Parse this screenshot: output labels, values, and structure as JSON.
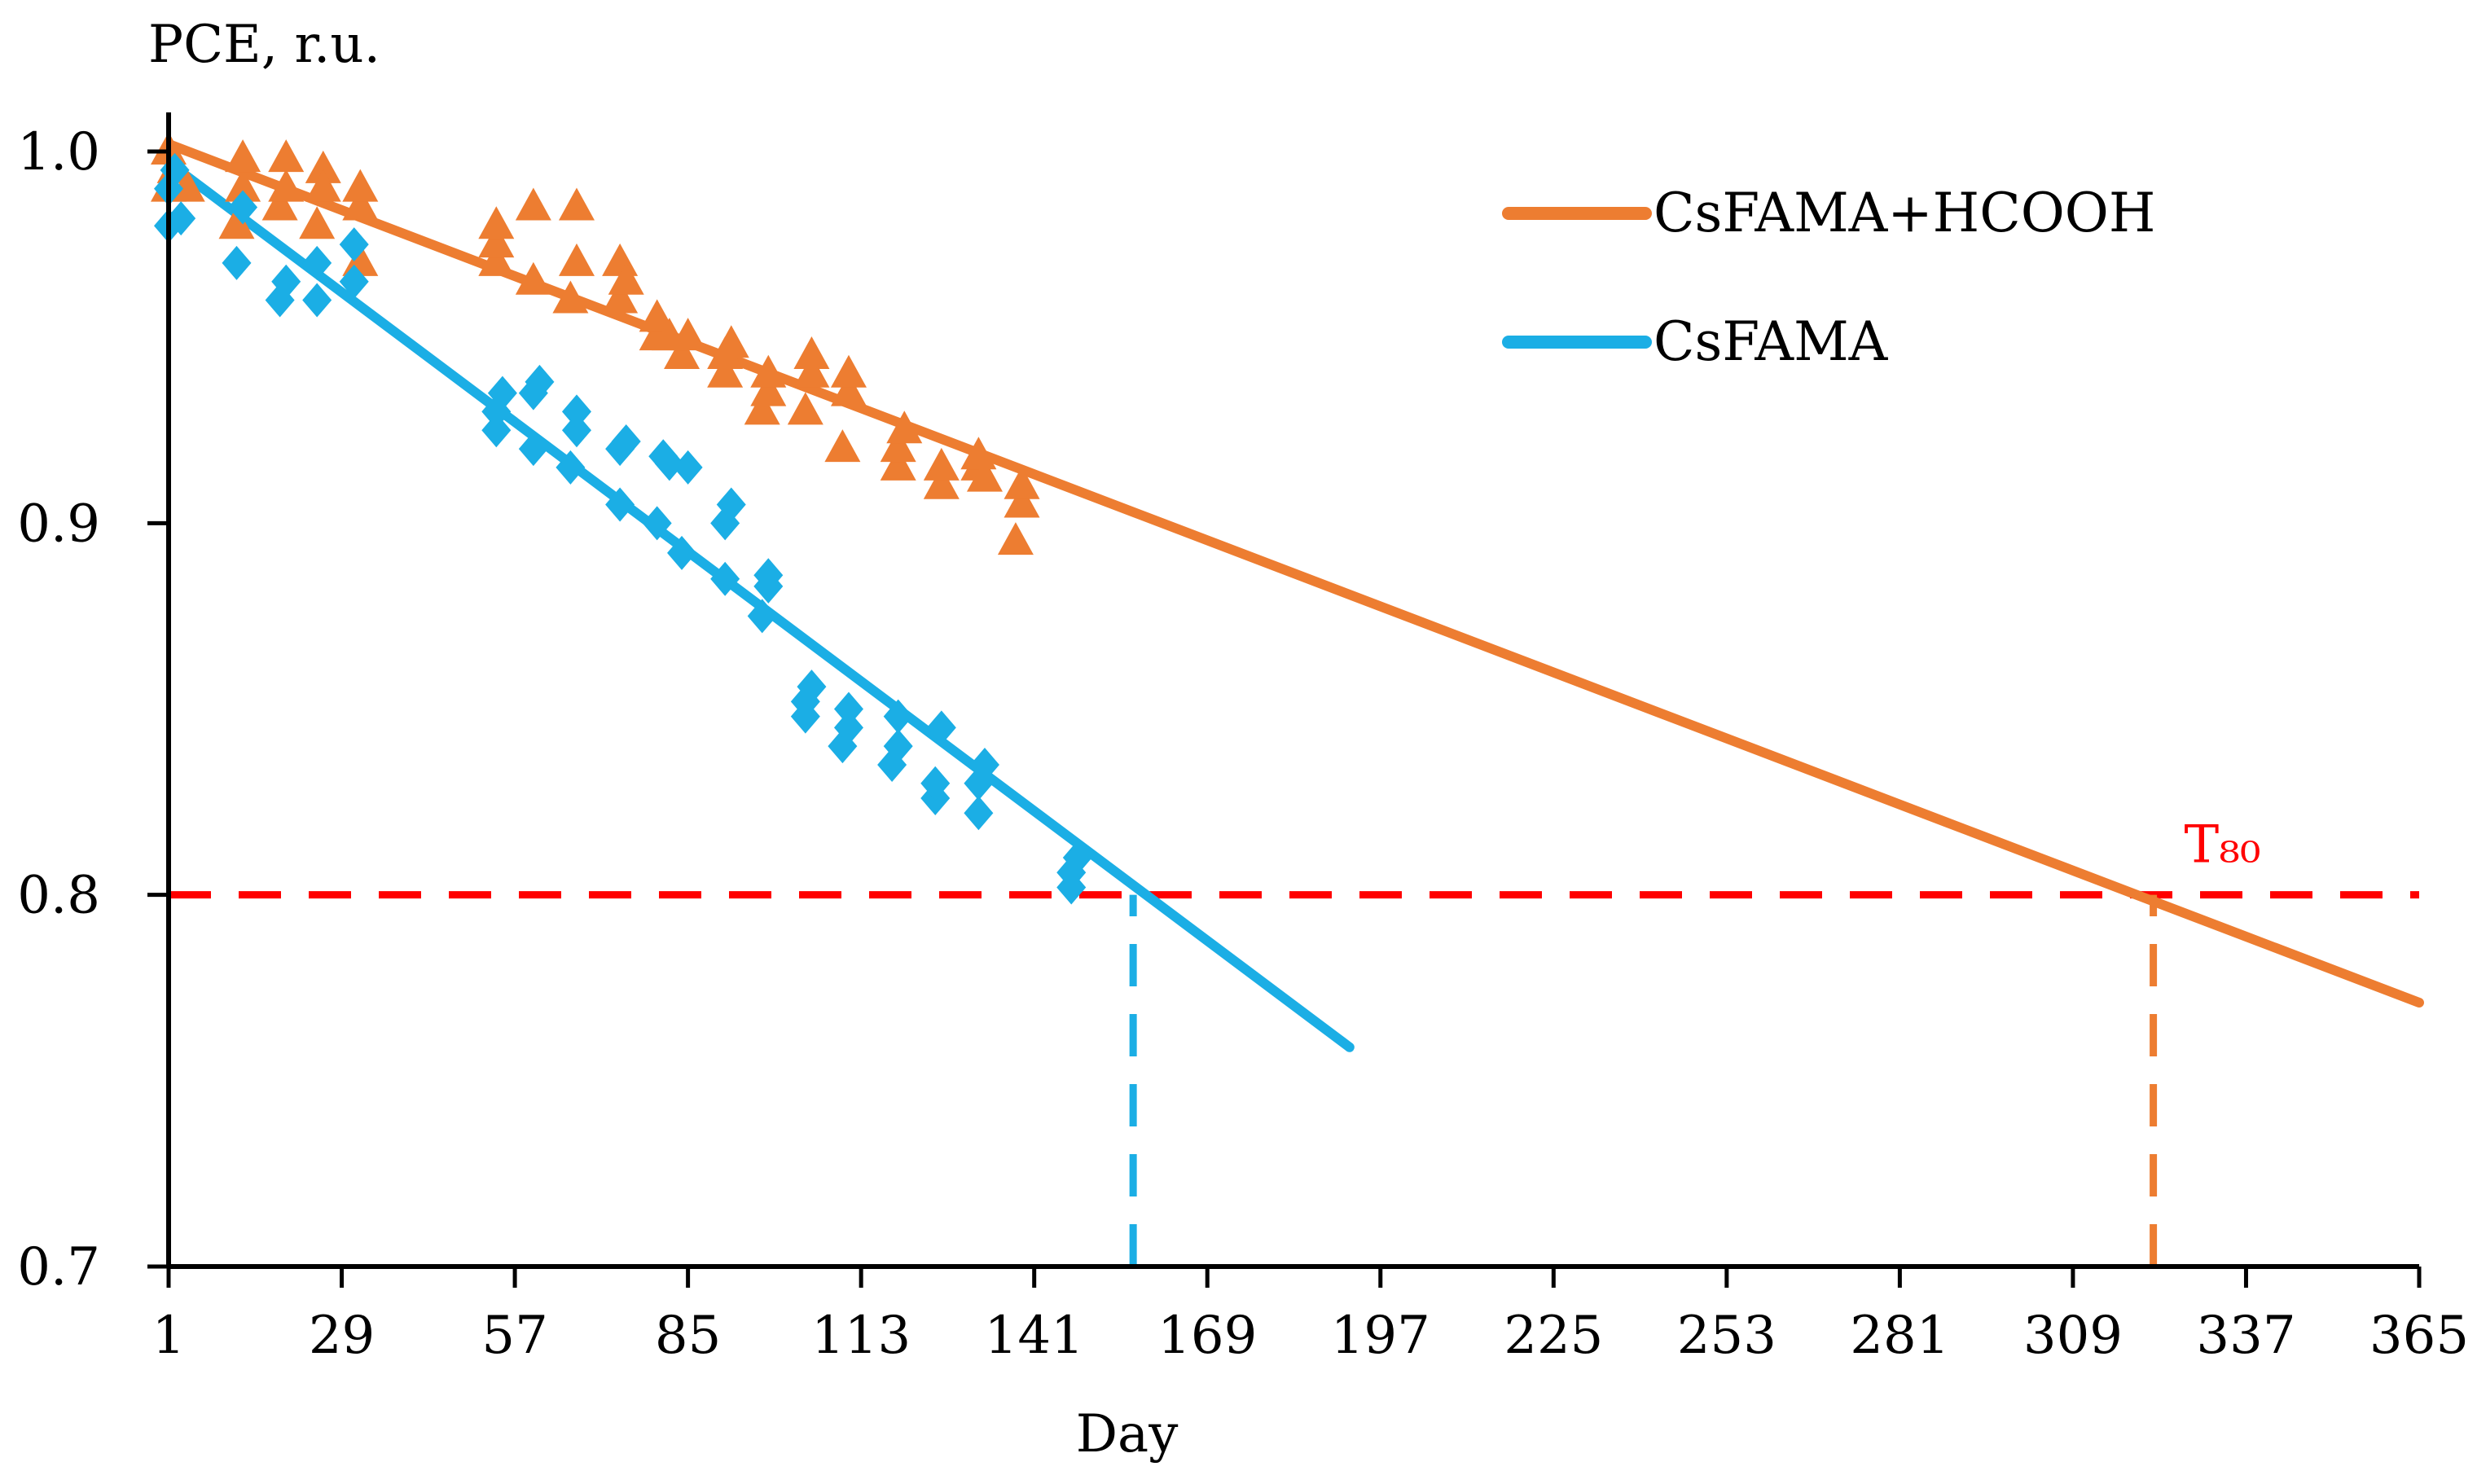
{
  "chart_data": {
    "type": "scatter",
    "title": "",
    "ylabel": "PCE, r.u.",
    "xlabel": "Day",
    "xlim": [
      1,
      365
    ],
    "ylim": [
      0.7,
      1.0
    ],
    "x_ticks": [
      1,
      29,
      57,
      85,
      113,
      141,
      169,
      197,
      225,
      253,
      281,
      309,
      337,
      365
    ],
    "y_ticks": [
      0.7,
      0.8,
      0.9,
      1.0
    ],
    "y_tick_labels": [
      "0.7",
      "0.8",
      "0.9",
      "1.0"
    ],
    "grid": false,
    "legend_position": "top-right",
    "series": [
      {
        "name": "CsFAMA+HCOOH",
        "color": "#ED7D31",
        "marker": "triangle",
        "points": [
          [
            1,
            0.99
          ],
          [
            1,
            1.0
          ],
          [
            2,
            0.995
          ],
          [
            4,
            0.99
          ],
          [
            12,
            0.98
          ],
          [
            13,
            0.99
          ],
          [
            13,
            0.998
          ],
          [
            19,
            0.985
          ],
          [
            20,
            0.99
          ],
          [
            20,
            0.998
          ],
          [
            25,
            0.98
          ],
          [
            26,
            0.995
          ],
          [
            26,
            0.99
          ],
          [
            32,
            0.97
          ],
          [
            32,
            0.985
          ],
          [
            32,
            0.99
          ],
          [
            54,
            0.97
          ],
          [
            54,
            0.975
          ],
          [
            54,
            0.98
          ],
          [
            60,
            0.965
          ],
          [
            60,
            0.985
          ],
          [
            66,
            0.96
          ],
          [
            67,
            0.97
          ],
          [
            67,
            0.985
          ],
          [
            74,
            0.96
          ],
          [
            74,
            0.97
          ],
          [
            75,
            0.965
          ],
          [
            80,
            0.95
          ],
          [
            80,
            0.955
          ],
          [
            82,
            0.95
          ],
          [
            84,
            0.945
          ],
          [
            85,
            0.95
          ],
          [
            91,
            0.94
          ],
          [
            91,
            0.945
          ],
          [
            92,
            0.948
          ],
          [
            97,
            0.93
          ],
          [
            98,
            0.935
          ],
          [
            98,
            0.94
          ],
          [
            104,
            0.93
          ],
          [
            105,
            0.94
          ],
          [
            105,
            0.945
          ],
          [
            110,
            0.92
          ],
          [
            111,
            0.935
          ],
          [
            111,
            0.94
          ],
          [
            119,
            0.915
          ],
          [
            119,
            0.92
          ],
          [
            120,
            0.925
          ],
          [
            126,
            0.91
          ],
          [
            126,
            0.915
          ],
          [
            132,
            0.915
          ],
          [
            132,
            0.918
          ],
          [
            133,
            0.912
          ],
          [
            138,
            0.895
          ],
          [
            139,
            0.905
          ],
          [
            139,
            0.91
          ]
        ],
        "trend": [
          [
            1,
            1.002
          ],
          [
            365,
            0.771
          ]
        ]
      },
      {
        "name": "CsFAMA",
        "color": "#1BAEE5",
        "marker": "diamond",
        "points": [
          [
            1,
            0.98
          ],
          [
            1,
            0.99
          ],
          [
            2,
            0.995
          ],
          [
            3,
            0.982
          ],
          [
            12,
            0.97
          ],
          [
            13,
            0.985
          ],
          [
            19,
            0.96
          ],
          [
            20,
            0.965
          ],
          [
            25,
            0.96
          ],
          [
            25,
            0.97
          ],
          [
            31,
            0.965
          ],
          [
            31,
            0.975
          ],
          [
            54,
            0.925
          ],
          [
            54,
            0.93
          ],
          [
            55,
            0.935
          ],
          [
            60,
            0.92
          ],
          [
            60,
            0.935
          ],
          [
            61,
            0.938
          ],
          [
            66,
            0.915
          ],
          [
            67,
            0.925
          ],
          [
            67,
            0.93
          ],
          [
            74,
            0.905
          ],
          [
            74,
            0.92
          ],
          [
            75,
            0.922
          ],
          [
            80,
            0.9
          ],
          [
            81,
            0.918
          ],
          [
            82,
            0.916
          ],
          [
            84,
            0.892
          ],
          [
            85,
            0.915
          ],
          [
            91,
            0.885
          ],
          [
            91,
            0.9
          ],
          [
            92,
            0.905
          ],
          [
            97,
            0.875
          ],
          [
            98,
            0.883
          ],
          [
            98,
            0.886
          ],
          [
            104,
            0.848
          ],
          [
            104,
            0.852
          ],
          [
            105,
            0.856
          ],
          [
            110,
            0.84
          ],
          [
            111,
            0.845
          ],
          [
            111,
            0.85
          ],
          [
            118,
            0.835
          ],
          [
            119,
            0.84
          ],
          [
            119,
            0.848
          ],
          [
            125,
            0.826
          ],
          [
            125,
            0.83
          ],
          [
            126,
            0.845
          ],
          [
            132,
            0.822
          ],
          [
            132,
            0.83
          ],
          [
            133,
            0.835
          ],
          [
            147,
            0.802
          ],
          [
            147,
            0.806
          ],
          [
            148,
            0.81
          ]
        ],
        "trend": [
          [
            1,
            0.997
          ],
          [
            192,
            0.759
          ]
        ]
      }
    ],
    "reference_lines": [
      {
        "orientation": "horizontal",
        "y": 0.8,
        "x_range": [
          1,
          365
        ],
        "color": "#FF0000",
        "dash": true,
        "label": "T₈₀"
      },
      {
        "orientation": "vertical",
        "x": 157,
        "y_range": [
          0.7,
          0.8
        ],
        "color": "#1BAEE5",
        "dash": true
      },
      {
        "orientation": "vertical",
        "x": 322,
        "y_range": [
          0.7,
          0.8
        ],
        "color": "#ED7D31",
        "dash": true
      }
    ]
  }
}
